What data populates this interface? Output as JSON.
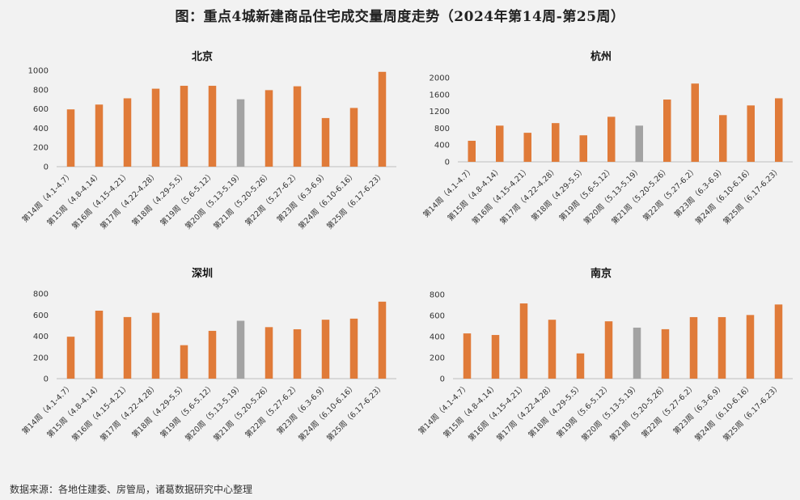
{
  "title": "图：重点4城新建商品住宅成交量周度走势（2024年第14周-第25周）",
  "source": "数据来源：各地住建委、房管局，诸葛数据研究中心整理",
  "colors": {
    "bar": "#e07b39",
    "highlight": "#a3a3a3",
    "axis": "#bfbfbf"
  },
  "chart_data": [
    {
      "type": "bar",
      "title": "北京",
      "categories": [
        "第14周（4.1-4.7）",
        "第15周（4.8-4.14）",
        "第16周（4.15-4.21）",
        "第17周（4.22-4.28）",
        "第18周（4.29-5.5）",
        "第19周（5.6-5.12）",
        "第20周（5.13-5.19）",
        "第21周（5.20-5.26）",
        "第22周（5.27-6.2）",
        "第23周（6.3-6.9）",
        "第24周（6.10-6.16）",
        "第25周（6.17-6.23）"
      ],
      "values": [
        595,
        645,
        710,
        810,
        840,
        840,
        700,
        795,
        835,
        505,
        610,
        985
      ],
      "highlight_index": 6,
      "ylim": [
        0,
        1000
      ],
      "yticks": [
        0,
        200,
        400,
        600,
        800,
        1000
      ],
      "ytick_labels": [
        "0",
        "200",
        "400",
        "600",
        "800",
        "1000"
      ],
      "xlabel": "",
      "ylabel": "",
      "grid": false
    },
    {
      "type": "bar",
      "title": "杭州",
      "categories": [
        "第14周（4.1-4.7）",
        "第15周（4.8-4.14）",
        "第16周（4.15-4.21）",
        "第17周（4.22-4.28）",
        "第18周（4.29-5.5）",
        "第19周（5.6-5.12）",
        "第20周（5.13-5.19）",
        "第21周（5.20-5.26）",
        "第22周（5.27-6.2）",
        "第23周（6.3-6.9）",
        "第24周（6.10-6.16）",
        "第25周（6.17-6.23）"
      ],
      "values": [
        500,
        860,
        690,
        920,
        630,
        1070,
        860,
        1480,
        1860,
        1110,
        1340,
        1510
      ],
      "highlight_index": 6,
      "ylim": [
        0,
        2000
      ],
      "yticks": [
        0,
        400,
        800,
        1200,
        1600,
        2000
      ],
      "ytick_labels": [
        "0",
        "400",
        "800",
        "1200",
        "1600",
        "2000"
      ],
      "xlabel": "",
      "ylabel": "",
      "grid": false
    },
    {
      "type": "bar",
      "title": "深圳",
      "categories": [
        "第14周（4.1-4.7）",
        "第15周（4.8-4.14）",
        "第16周（4.15-4.21）",
        "第17周（4.22-4.28）",
        "第18周（4.29-5.5）",
        "第19周（5.6-5.12）",
        "第20周（5.13-5.19）",
        "第21周（5.20-5.26）",
        "第22周（5.27-6.2）",
        "第23周（6.3-6.9）",
        "第24周（6.10-6.16）",
        "第25周（6.17-6.23）"
      ],
      "values": [
        395,
        640,
        580,
        620,
        315,
        450,
        545,
        485,
        465,
        555,
        565,
        725
      ],
      "highlight_index": 6,
      "ylim": [
        0,
        800
      ],
      "yticks": [
        0,
        200,
        400,
        600,
        800
      ],
      "ytick_labels": [
        "0",
        "200",
        "400",
        "600",
        "800"
      ],
      "xlabel": "",
      "ylabel": "",
      "grid": false
    },
    {
      "type": "bar",
      "title": "南京",
      "categories": [
        "第14周（4.1-4.7）",
        "第15周（4.8-4.14）",
        "第16周（4.15-4.21）",
        "第17周（4.22-4.28）",
        "第18周（4.29-5.5）",
        "第19周（5.6-5.12）",
        "第20周（5.13-5.19）",
        "第21周（5.20-5.26）",
        "第22周（5.27-6.2）",
        "第23周（6.3-6.9）",
        "第24周（6.10-6.16）",
        "第25周（6.17-6.23）"
      ],
      "values": [
        430,
        415,
        715,
        560,
        240,
        545,
        485,
        470,
        585,
        585,
        605,
        705
      ],
      "highlight_index": 6,
      "ylim": [
        0,
        800
      ],
      "yticks": [
        0,
        200,
        400,
        600,
        800
      ],
      "ytick_labels": [
        "0",
        "200",
        "400",
        "600",
        "800"
      ],
      "xlabel": "",
      "ylabel": "",
      "grid": false
    }
  ]
}
